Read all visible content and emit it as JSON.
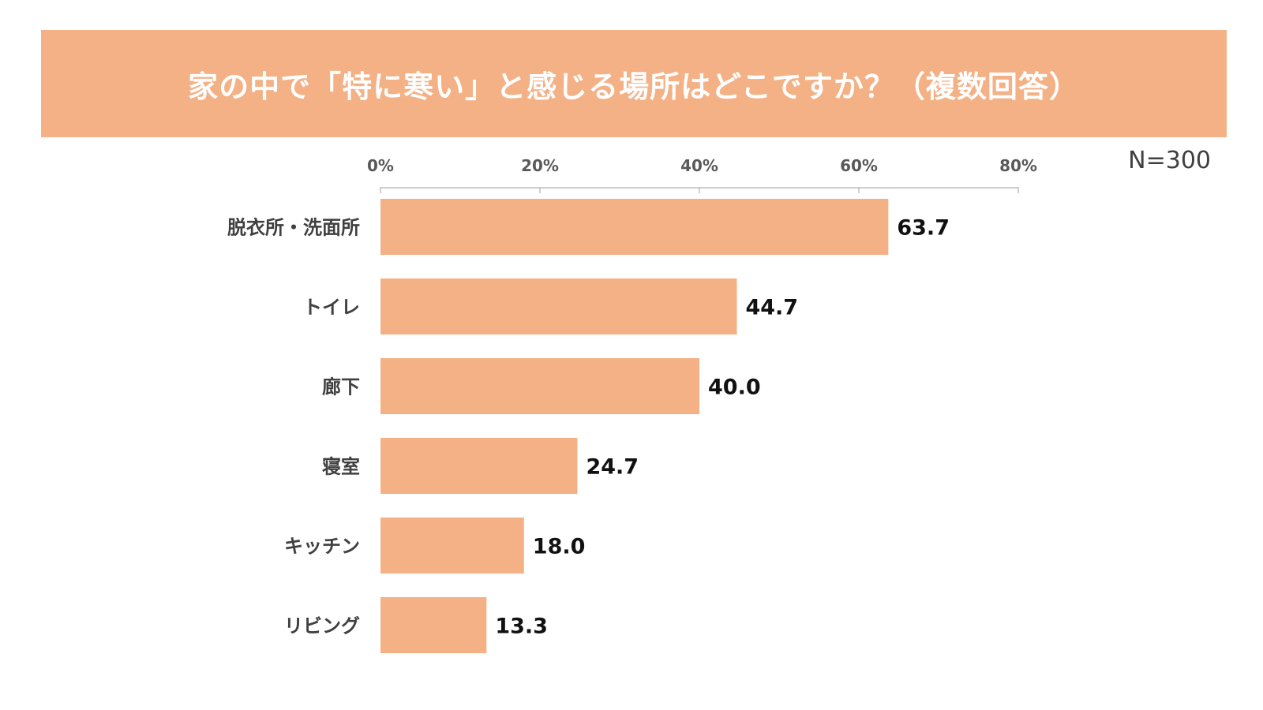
{
  "title": "家の中で「特に寒い」と感じる場所はどこですか？（複数回答）",
  "sample_size": "N=300",
  "colors": {
    "banner": "#f3b185",
    "bar": "#f3b185",
    "axis": "#bfbfbf"
  },
  "chart_data": {
    "type": "bar",
    "orientation": "horizontal",
    "title": "家の中で「特に寒い」と感じる場所はどこですか？（複数回答）",
    "xlabel": "",
    "ylabel": "",
    "xlim": [
      0,
      80
    ],
    "xticks": [
      0,
      20,
      40,
      60,
      80
    ],
    "xtick_labels": [
      "0%",
      "20%",
      "40%",
      "60%",
      "80%"
    ],
    "categories": [
      "脱衣所・洗面所",
      "トイレ",
      "廊下",
      "寝室",
      "キッチン",
      "リビング"
    ],
    "values": [
      63.7,
      44.7,
      40.0,
      24.7,
      18.0,
      13.3
    ],
    "value_labels": [
      "63.7",
      "44.7",
      "40.0",
      "24.7",
      "18.0",
      "13.3"
    ],
    "axis_position": "top",
    "grid": false
  }
}
